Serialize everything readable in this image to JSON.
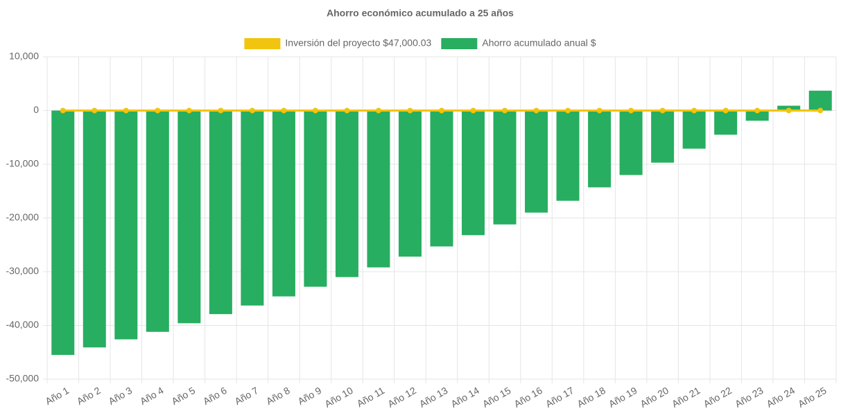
{
  "chart_data": {
    "type": "bar",
    "title": "Ahorro económico acumulado a 25 años",
    "categories": [
      "Año 1",
      "Año 2",
      "Año 3",
      "Año 4",
      "Año 5",
      "Año 6",
      "Año 7",
      "Año 8",
      "Año 9",
      "Año 10",
      "Año 11",
      "Año 12",
      "Año 13",
      "Año 14",
      "Año 15",
      "Año 16",
      "Año 17",
      "Año 18",
      "Año 19",
      "Año 20",
      "Año 21",
      "Año 22",
      "Año 23",
      "Año 24",
      "Año 25"
    ],
    "series": [
      {
        "name": "Inversión del proyecto $47,000.03",
        "type": "line",
        "color": "#f1c40f",
        "values": [
          0,
          0,
          0,
          0,
          0,
          0,
          0,
          0,
          0,
          0,
          0,
          0,
          0,
          0,
          0,
          0,
          0,
          0,
          0,
          0,
          0,
          0,
          0,
          0,
          0
        ]
      },
      {
        "name": "Ahorro acumulado anual $",
        "type": "bar",
        "color": "#27ae60",
        "values": [
          -45500,
          -44100,
          -42600,
          -41200,
          -39600,
          -37900,
          -36300,
          -34600,
          -32800,
          -31000,
          -29200,
          -27200,
          -25300,
          -23200,
          -21200,
          -19000,
          -16800,
          -14300,
          -12000,
          -9700,
          -7100,
          -4500,
          -1900,
          900,
          3700
        ]
      }
    ],
    "ylim": [
      -50000,
      10000
    ],
    "yticks": [
      {
        "value": -50000,
        "label": "-50,000"
      },
      {
        "value": -40000,
        "label": "-40,000"
      },
      {
        "value": -30000,
        "label": "-30,000"
      },
      {
        "value": -20000,
        "label": "-20,000"
      },
      {
        "value": -10000,
        "label": "-10,000"
      },
      0,
      {
        "value": 10000,
        "label": "10,000"
      }
    ],
    "grid": true
  }
}
